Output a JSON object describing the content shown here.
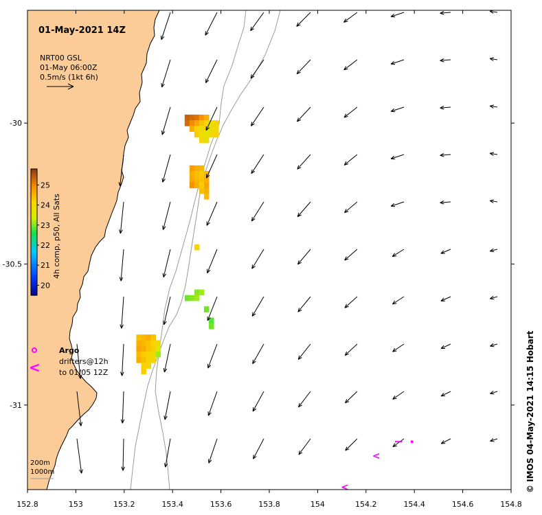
{
  "map": {
    "title": "01-May-2021 14Z",
    "current_legend": {
      "line1": "NRT00 GSL",
      "line2": "01-May 06:00Z",
      "line3": "0.5m/s (1kt 6h)"
    },
    "colorbar": {
      "label": "4h comp, p50, All Sats",
      "ticks": [
        "25",
        "24",
        "23",
        "22",
        "21",
        "20"
      ],
      "min": 19.5,
      "max": 25.8
    },
    "argo_label": "Argo",
    "drifters_line1": "drifters@12h",
    "drifters_line2": "to 01/05 12Z",
    "depth_legend": {
      "shallow": "200m",
      "deep": "1000m"
    },
    "credit": "© IMOS 04-May-2021 14:15 Hobart",
    "x_ticks": [
      "152.8",
      "153",
      "153.2",
      "153.4",
      "153.6",
      "153.8",
      "154",
      "154.2",
      "154.4",
      "154.6",
      "154.8"
    ],
    "y_ticks": [
      "-30",
      "-30.5",
      "-31"
    ],
    "colors": {
      "land": "#fbcc97",
      "coast": "#000000",
      "isobath": "#9a9a9a",
      "vector": "#000000",
      "drifter": "#ff00ff"
    },
    "sst_pixels_degC": [
      [
        153.46,
        -29.98,
        25.4
      ],
      [
        153.48,
        -29.98,
        25.3
      ],
      [
        153.5,
        -29.98,
        25.2
      ],
      [
        153.52,
        -29.98,
        24.9
      ],
      [
        153.54,
        -29.98,
        24.6
      ],
      [
        153.46,
        -30.0,
        25.3
      ],
      [
        153.48,
        -30.0,
        25.0
      ],
      [
        153.5,
        -30.0,
        24.7
      ],
      [
        153.52,
        -30.0,
        24.4
      ],
      [
        153.54,
        -30.0,
        24.1
      ],
      [
        153.56,
        -30.0,
        23.9
      ],
      [
        153.58,
        -30.0,
        24.2
      ],
      [
        153.48,
        -30.02,
        24.6
      ],
      [
        153.5,
        -30.02,
        24.2
      ],
      [
        153.52,
        -30.02,
        24.0
      ],
      [
        153.54,
        -30.02,
        23.8
      ],
      [
        153.56,
        -30.02,
        23.9
      ],
      [
        153.58,
        -30.02,
        24.1
      ],
      [
        153.5,
        -30.04,
        24.3
      ],
      [
        153.52,
        -30.04,
        23.9
      ],
      [
        153.54,
        -30.04,
        23.8
      ],
      [
        153.56,
        -30.04,
        24.0
      ],
      [
        153.58,
        -30.04,
        24.2
      ],
      [
        153.52,
        -30.06,
        24.1
      ],
      [
        153.54,
        -30.06,
        23.9
      ],
      [
        153.48,
        -30.16,
        24.8
      ],
      [
        153.5,
        -30.16,
        24.6
      ],
      [
        153.52,
        -30.16,
        24.5
      ],
      [
        153.48,
        -30.18,
        24.6
      ],
      [
        153.5,
        -30.18,
        24.4
      ],
      [
        153.52,
        -30.18,
        24.3
      ],
      [
        153.54,
        -30.18,
        24.5
      ],
      [
        153.48,
        -30.2,
        24.7
      ],
      [
        153.5,
        -30.2,
        24.5
      ],
      [
        153.52,
        -30.2,
        24.4
      ],
      [
        153.54,
        -30.2,
        24.6
      ],
      [
        153.48,
        -30.22,
        24.9
      ],
      [
        153.5,
        -30.22,
        24.6
      ],
      [
        153.52,
        -30.22,
        24.3
      ],
      [
        153.54,
        -30.22,
        24.7
      ],
      [
        153.52,
        -30.24,
        24.4
      ],
      [
        153.54,
        -30.24,
        24.6
      ],
      [
        153.54,
        -30.26,
        24.5
      ],
      [
        153.5,
        -30.44,
        24.2
      ],
      [
        153.5,
        -30.6,
        23.1
      ],
      [
        153.52,
        -30.6,
        23.2
      ],
      [
        153.46,
        -30.62,
        23.0
      ],
      [
        153.48,
        -30.62,
        23.1
      ],
      [
        153.5,
        -30.62,
        23.2
      ],
      [
        153.54,
        -30.66,
        23.0
      ],
      [
        153.56,
        -30.7,
        22.9
      ],
      [
        153.56,
        -30.72,
        23.0
      ],
      [
        153.26,
        -30.76,
        24.4
      ],
      [
        153.28,
        -30.76,
        24.5
      ],
      [
        153.3,
        -30.76,
        24.6
      ],
      [
        153.32,
        -30.76,
        24.4
      ],
      [
        153.26,
        -30.78,
        24.6
      ],
      [
        153.28,
        -30.78,
        24.5
      ],
      [
        153.3,
        -30.78,
        24.4
      ],
      [
        153.32,
        -30.78,
        24.2
      ],
      [
        153.34,
        -30.78,
        24.0
      ],
      [
        153.26,
        -30.8,
        24.7
      ],
      [
        153.28,
        -30.8,
        24.6
      ],
      [
        153.3,
        -30.8,
        24.4
      ],
      [
        153.32,
        -30.8,
        24.3
      ],
      [
        153.34,
        -30.8,
        23.6
      ],
      [
        153.26,
        -30.82,
        24.5
      ],
      [
        153.28,
        -30.82,
        24.3
      ],
      [
        153.3,
        -30.82,
        24.2
      ],
      [
        153.32,
        -30.82,
        24.0
      ],
      [
        153.34,
        -30.82,
        23.2
      ],
      [
        153.26,
        -30.84,
        24.6
      ],
      [
        153.28,
        -30.84,
        24.4
      ],
      [
        153.3,
        -30.84,
        24.2
      ],
      [
        153.32,
        -30.84,
        24.1
      ],
      [
        153.28,
        -30.86,
        24.2
      ],
      [
        153.3,
        -30.86,
        24.1
      ],
      [
        153.28,
        -30.88,
        24.3
      ]
    ],
    "drifter_arrows": [
      [
        154.24,
        -31.18,
        "<"
      ],
      [
        154.11,
        -31.29,
        "<"
      ]
    ],
    "drifter_track": [
      [
        154.32,
        -31.13
      ],
      [
        154.35,
        -31.13
      ]
    ],
    "drifter_dot": [
      154.39,
      -31.13
    ]
  }
}
